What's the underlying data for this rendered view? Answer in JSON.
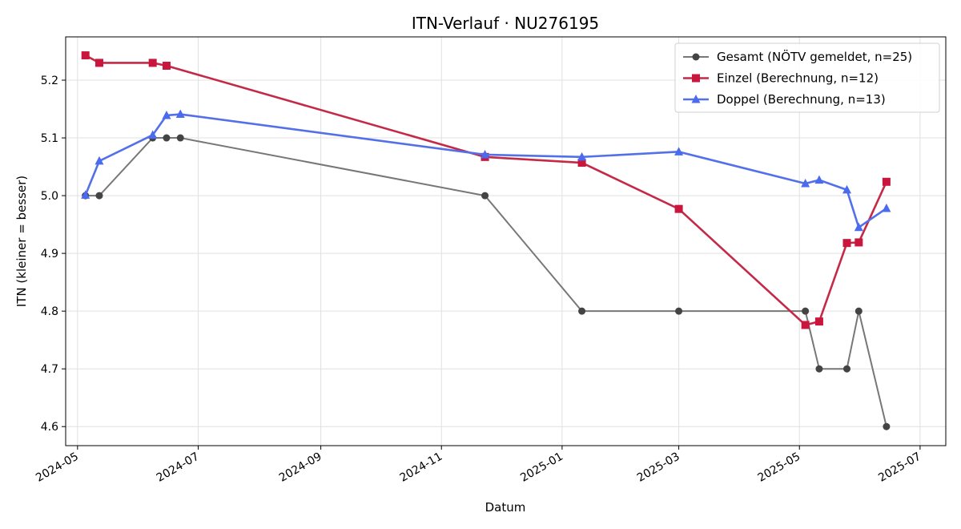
{
  "chart_data": {
    "type": "line",
    "title": "ITN-Verlauf · NU276195",
    "xlabel": "Datum",
    "ylabel": "ITN  (kleiner = besser)",
    "x_type": "date",
    "xlim": [
      "2024-04-25",
      "2025-07-14"
    ],
    "ylim": [
      4.567,
      5.275
    ],
    "x_ticks": [
      "2024-05-01",
      "2024-07-01",
      "2024-09-01",
      "2024-11-01",
      "2025-01-01",
      "2025-03-01",
      "2025-05-01",
      "2025-07-01"
    ],
    "x_tick_labels": [
      "2024-05",
      "2024-07",
      "2024-09",
      "2024-11",
      "2025-01",
      "2025-03",
      "2025-05",
      "2025-07"
    ],
    "y_ticks": [
      4.6,
      4.7,
      4.8,
      4.9,
      5.0,
      5.1,
      5.2
    ],
    "y_tick_labels": [
      "4.6",
      "4.7",
      "4.8",
      "4.9",
      "5.0",
      "5.1",
      "5.2"
    ],
    "grid": true,
    "legend_position": "top-right",
    "series": [
      {
        "name": "Gesamt (NÖTV gemeldet, n=25)",
        "color": "#777777",
        "marker_color": "#444444",
        "marker": "circle",
        "points": [
          {
            "x": "2024-05-05",
            "y": 5.0
          },
          {
            "x": "2024-05-12",
            "y": 5.0
          },
          {
            "x": "2024-06-08",
            "y": 5.1
          },
          {
            "x": "2024-06-15",
            "y": 5.1
          },
          {
            "x": "2024-06-22",
            "y": 5.1
          },
          {
            "x": "2024-11-23",
            "y": 5.0
          },
          {
            "x": "2025-01-11",
            "y": 4.8
          },
          {
            "x": "2025-03-01",
            "y": 4.8
          },
          {
            "x": "2025-05-04",
            "y": 4.8
          },
          {
            "x": "2025-05-11",
            "y": 4.7
          },
          {
            "x": "2025-05-25",
            "y": 4.7
          },
          {
            "x": "2025-05-31",
            "y": 4.8
          },
          {
            "x": "2025-06-14",
            "y": 4.6
          }
        ]
      },
      {
        "name": "Einzel (Berechnung, n=12)",
        "color": "#c42a48",
        "marker_color": "#c8163d",
        "marker": "square",
        "points": [
          {
            "x": "2024-05-05",
            "y": 5.243
          },
          {
            "x": "2024-05-12",
            "y": 5.23
          },
          {
            "x": "2024-06-08",
            "y": 5.23
          },
          {
            "x": "2024-06-15",
            "y": 5.225
          },
          {
            "x": "2024-11-23",
            "y": 5.067
          },
          {
            "x": "2025-01-11",
            "y": 5.057
          },
          {
            "x": "2025-03-01",
            "y": 4.977
          },
          {
            "x": "2025-05-04",
            "y": 4.776
          },
          {
            "x": "2025-05-11",
            "y": 4.782
          },
          {
            "x": "2025-05-25",
            "y": 4.918
          },
          {
            "x": "2025-05-31",
            "y": 4.919
          },
          {
            "x": "2025-06-14",
            "y": 5.024
          }
        ]
      },
      {
        "name": "Doppel (Berechnung, n=13)",
        "color": "#5470e8",
        "marker_color": "#4a6af0",
        "marker": "triangle",
        "points": [
          {
            "x": "2024-05-05",
            "y": 5.001
          },
          {
            "x": "2024-05-12",
            "y": 5.06
          },
          {
            "x": "2024-06-08",
            "y": 5.105
          },
          {
            "x": "2024-06-15",
            "y": 5.139
          },
          {
            "x": "2024-06-22",
            "y": 5.141
          },
          {
            "x": "2024-11-23",
            "y": 5.071
          },
          {
            "x": "2025-01-11",
            "y": 5.067
          },
          {
            "x": "2025-03-01",
            "y": 5.076
          },
          {
            "x": "2025-05-04",
            "y": 5.021
          },
          {
            "x": "2025-05-11",
            "y": 5.027
          },
          {
            "x": "2025-05-25",
            "y": 5.01
          },
          {
            "x": "2025-05-31",
            "y": 4.945
          },
          {
            "x": "2025-06-14",
            "y": 4.978
          }
        ]
      }
    ]
  }
}
